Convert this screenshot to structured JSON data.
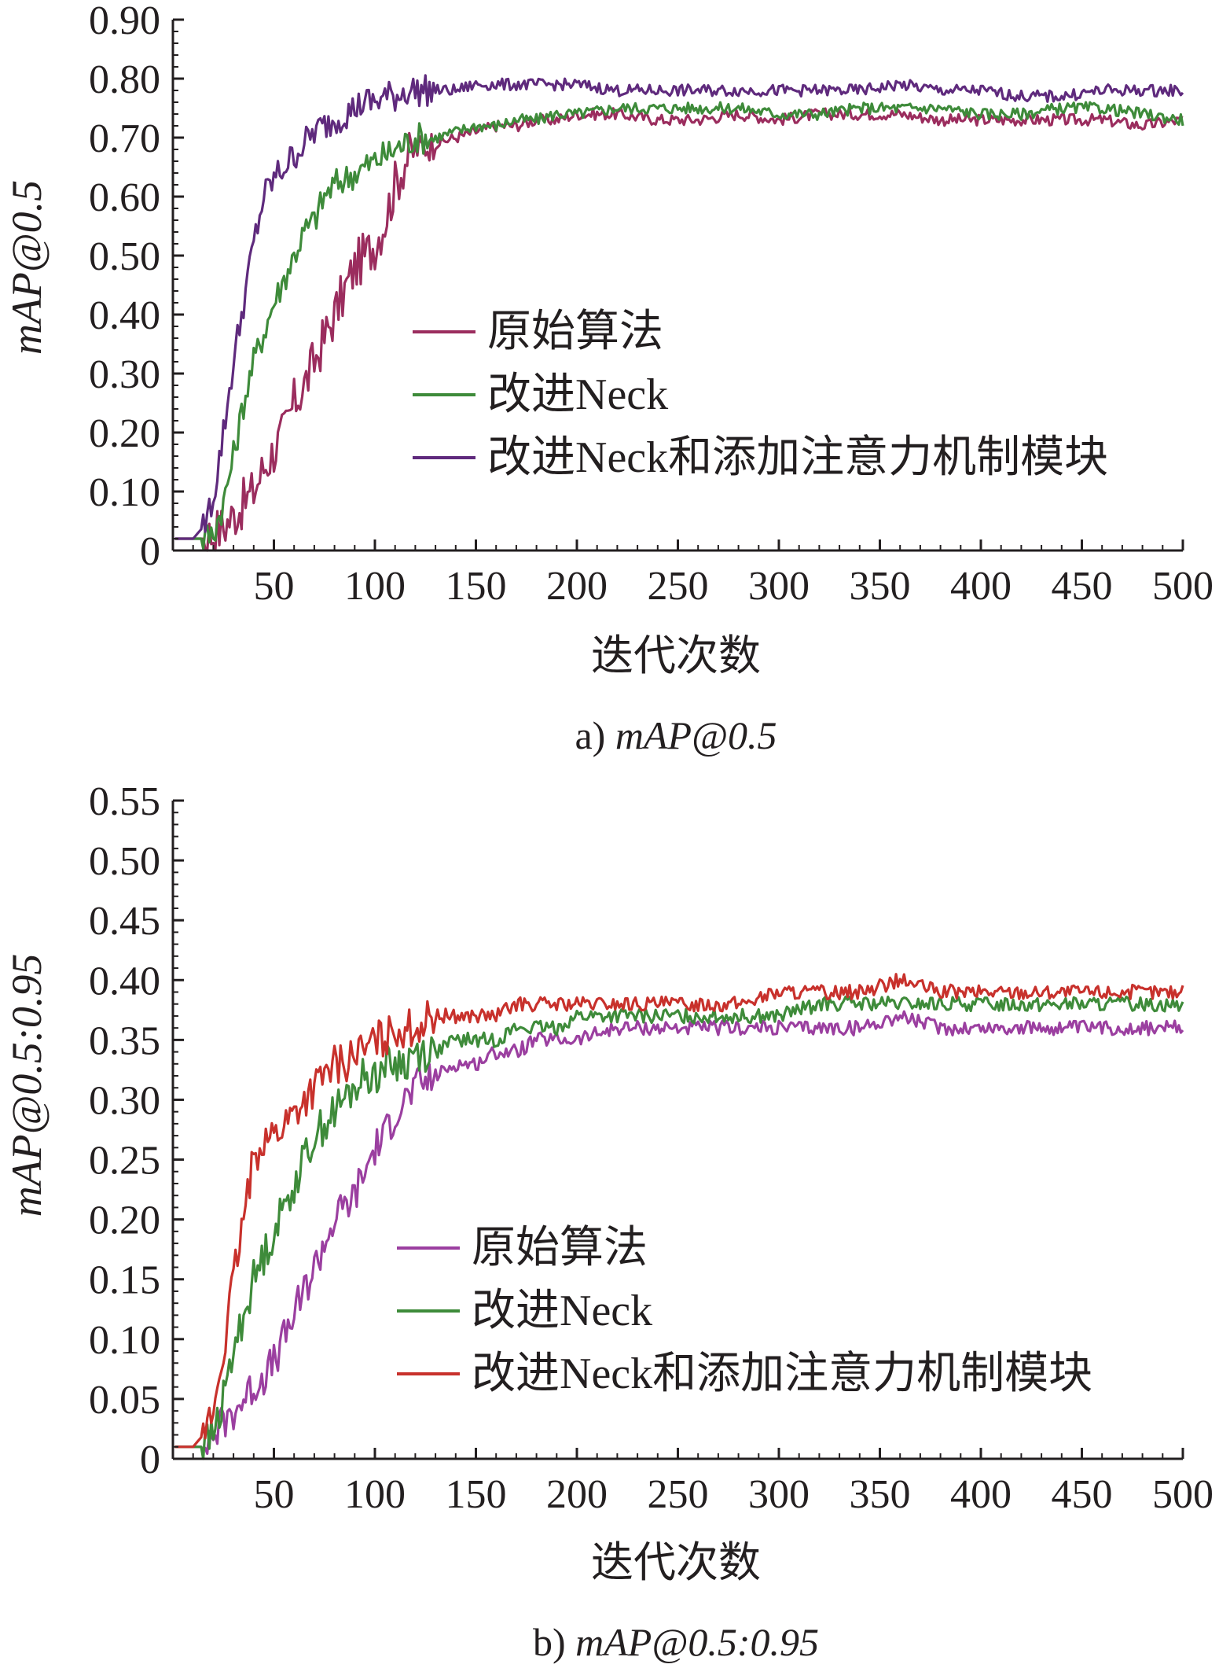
{
  "chart_data": [
    {
      "type": "line",
      "caption_prefix": "a)",
      "caption_metric": "mAP@0.5",
      "title": "",
      "ylabel": "mAP@0.5",
      "xlabel": "迭代次数",
      "xlim": [
        0,
        500
      ],
      "ylim": [
        0,
        0.9
      ],
      "x_ticks": [
        "50",
        "100",
        "150",
        "200",
        "250",
        "300",
        "350",
        "400",
        "450",
        "500"
      ],
      "y_ticks": [
        "0",
        "0.10",
        "0.20",
        "0.30",
        "0.40",
        "0.50",
        "0.60",
        "0.70",
        "0.80",
        "0.90"
      ],
      "grid": false,
      "legend_position": "center-right",
      "x": [
        1,
        10,
        15,
        20,
        25,
        30,
        35,
        40,
        45,
        50,
        55,
        60,
        65,
        70,
        75,
        80,
        85,
        90,
        95,
        100,
        105,
        110,
        115,
        120,
        130,
        140,
        150,
        160,
        170,
        180,
        190,
        200,
        220,
        240,
        260,
        280,
        300,
        320,
        340,
        360,
        380,
        400,
        420,
        440,
        460,
        480,
        500
      ],
      "series": [
        {
          "name": "原始算法",
          "color": "#9b2d5e",
          "values": [
            0.02,
            0.02,
            0.02,
            0.03,
            0.04,
            0.06,
            0.08,
            0.1,
            0.14,
            0.17,
            0.2,
            0.25,
            0.28,
            0.32,
            0.36,
            0.4,
            0.44,
            0.48,
            0.5,
            0.52,
            0.56,
            0.62,
            0.66,
            0.68,
            0.69,
            0.7,
            0.71,
            0.72,
            0.72,
            0.73,
            0.73,
            0.74,
            0.74,
            0.73,
            0.73,
            0.74,
            0.73,
            0.74,
            0.74,
            0.74,
            0.73,
            0.73,
            0.73,
            0.73,
            0.73,
            0.72,
            0.73
          ]
        },
        {
          "name": "改进Neck",
          "color": "#3e8b3a",
          "values": [
            0.02,
            0.02,
            0.02,
            0.03,
            0.08,
            0.16,
            0.25,
            0.32,
            0.37,
            0.42,
            0.46,
            0.5,
            0.54,
            0.56,
            0.6,
            0.62,
            0.63,
            0.64,
            0.65,
            0.66,
            0.67,
            0.68,
            0.69,
            0.7,
            0.7,
            0.71,
            0.72,
            0.72,
            0.73,
            0.73,
            0.74,
            0.74,
            0.75,
            0.75,
            0.75,
            0.75,
            0.74,
            0.74,
            0.75,
            0.75,
            0.75,
            0.74,
            0.74,
            0.75,
            0.75,
            0.74,
            0.73
          ]
        },
        {
          "name": "改进Neck和添加注意力机制模块",
          "color": "#5f2a7d",
          "values": [
            0.02,
            0.02,
            0.04,
            0.09,
            0.2,
            0.32,
            0.42,
            0.52,
            0.6,
            0.63,
            0.65,
            0.67,
            0.69,
            0.71,
            0.72,
            0.73,
            0.74,
            0.75,
            0.76,
            0.76,
            0.77,
            0.77,
            0.78,
            0.78,
            0.78,
            0.78,
            0.79,
            0.79,
            0.79,
            0.79,
            0.79,
            0.79,
            0.78,
            0.78,
            0.78,
            0.78,
            0.78,
            0.78,
            0.78,
            0.79,
            0.78,
            0.78,
            0.77,
            0.77,
            0.78,
            0.78,
            0.78
          ]
        }
      ]
    },
    {
      "type": "line",
      "caption_prefix": "b)",
      "caption_metric": "mAP@0.5:0.95",
      "title": "",
      "ylabel": "mAP@0.5:0.95",
      "xlabel": "迭代次数",
      "xlim": [
        0,
        500
      ],
      "ylim": [
        0,
        0.55
      ],
      "x_ticks": [
        "50",
        "100",
        "150",
        "200",
        "250",
        "300",
        "350",
        "400",
        "450",
        "500"
      ],
      "y_ticks": [
        "0",
        "0.05",
        "0.10",
        "0.15",
        "0.20",
        "0.25",
        "0.30",
        "0.35",
        "0.40",
        "0.45",
        "0.50",
        "0.55"
      ],
      "grid": false,
      "legend_position": "center-right",
      "x": [
        1,
        10,
        15,
        20,
        25,
        30,
        35,
        40,
        45,
        50,
        55,
        60,
        65,
        70,
        75,
        80,
        85,
        90,
        95,
        100,
        105,
        110,
        115,
        120,
        130,
        140,
        150,
        160,
        170,
        180,
        190,
        200,
        220,
        240,
        260,
        280,
        300,
        320,
        340,
        360,
        380,
        400,
        420,
        440,
        460,
        480,
        500
      ],
      "series": [
        {
          "name": "原始算法",
          "color": "#9b3fa0",
          "values": [
            0.01,
            0.01,
            0.01,
            0.02,
            0.03,
            0.04,
            0.05,
            0.06,
            0.07,
            0.08,
            0.1,
            0.12,
            0.14,
            0.16,
            0.18,
            0.2,
            0.21,
            0.22,
            0.24,
            0.26,
            0.27,
            0.29,
            0.3,
            0.31,
            0.32,
            0.33,
            0.33,
            0.34,
            0.34,
            0.35,
            0.35,
            0.35,
            0.36,
            0.36,
            0.36,
            0.36,
            0.36,
            0.36,
            0.36,
            0.37,
            0.36,
            0.36,
            0.36,
            0.36,
            0.36,
            0.36,
            0.36
          ]
        },
        {
          "name": "改进Neck",
          "color": "#3e8b3a",
          "values": [
            0.01,
            0.01,
            0.01,
            0.02,
            0.05,
            0.09,
            0.12,
            0.15,
            0.17,
            0.19,
            0.21,
            0.23,
            0.25,
            0.27,
            0.28,
            0.29,
            0.3,
            0.31,
            0.32,
            0.32,
            0.33,
            0.33,
            0.33,
            0.34,
            0.34,
            0.35,
            0.35,
            0.35,
            0.36,
            0.36,
            0.36,
            0.37,
            0.37,
            0.37,
            0.37,
            0.37,
            0.37,
            0.38,
            0.38,
            0.38,
            0.38,
            0.38,
            0.38,
            0.38,
            0.38,
            0.38,
            0.38
          ]
        },
        {
          "name": "改进Neck和添加注意力机制模块",
          "color": "#c8312c",
          "values": [
            0.01,
            0.01,
            0.02,
            0.04,
            0.09,
            0.15,
            0.2,
            0.25,
            0.27,
            0.27,
            0.28,
            0.29,
            0.3,
            0.31,
            0.32,
            0.33,
            0.33,
            0.34,
            0.34,
            0.35,
            0.35,
            0.36,
            0.36,
            0.36,
            0.37,
            0.37,
            0.37,
            0.37,
            0.38,
            0.38,
            0.38,
            0.38,
            0.38,
            0.38,
            0.38,
            0.38,
            0.39,
            0.39,
            0.39,
            0.4,
            0.39,
            0.39,
            0.39,
            0.39,
            0.39,
            0.39,
            0.39
          ]
        }
      ]
    }
  ]
}
